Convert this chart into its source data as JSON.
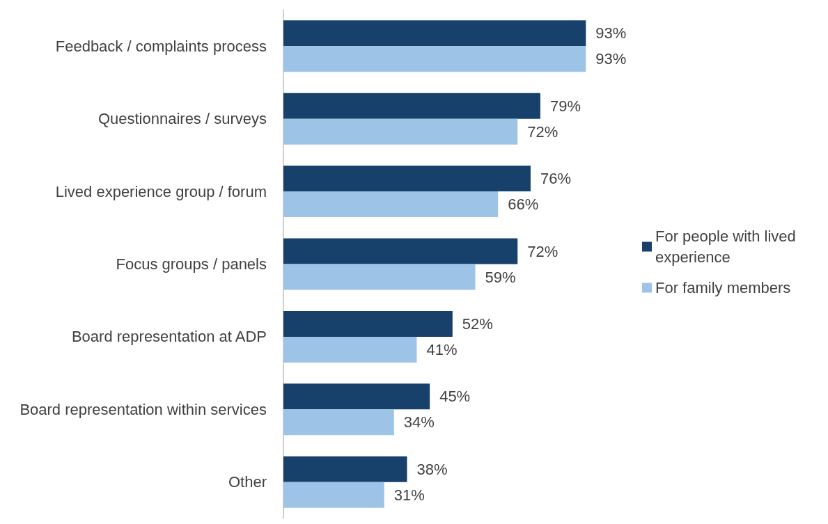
{
  "chart_data": {
    "type": "bar",
    "orientation": "horizontal",
    "categories": [
      "Feedback / complaints process",
      "Questionnaires / surveys",
      "Lived experience group / forum",
      "Focus groups / panels",
      "Board representation at ADP",
      "Board representation within services",
      "Other"
    ],
    "series": [
      {
        "name": "For people with lived experience",
        "color": "#17406b",
        "values": [
          93,
          79,
          76,
          72,
          52,
          45,
          38
        ],
        "value_labels": [
          "93%",
          "79%",
          "76%",
          "72%",
          "52%",
          "45%",
          "38%"
        ]
      },
      {
        "name": "For family members",
        "color": "#9dc3e6",
        "values": [
          93,
          72,
          66,
          59,
          41,
          34,
          31
        ],
        "value_labels": [
          "93%",
          "72%",
          "66%",
          "59%",
          "41%",
          "34%",
          "31%"
        ]
      }
    ],
    "legend": "right"
  }
}
